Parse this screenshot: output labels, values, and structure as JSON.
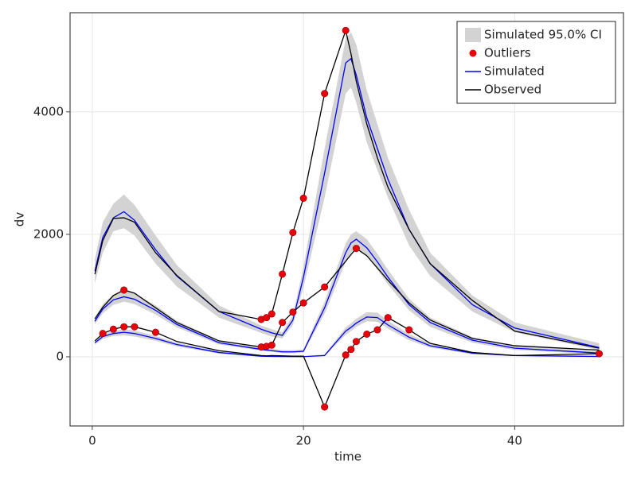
{
  "chart_data": {
    "type": "line",
    "xlabel": "time",
    "ylabel": "dv",
    "xlim": [
      -2.1,
      50.3
    ],
    "ylim": [
      -1130,
      5620
    ],
    "xticks": [
      0,
      20,
      40
    ],
    "yticks": [
      0,
      2000,
      4000
    ],
    "grid": true,
    "legend": "upper right",
    "x": [
      0.25,
      1,
      2,
      3,
      4,
      6,
      8,
      12,
      16,
      16.5,
      17,
      18,
      19,
      20,
      22,
      24,
      24.5,
      25,
      26,
      27,
      28,
      30,
      32,
      36,
      40,
      48
    ],
    "legend_entries": [
      {
        "name": "Simulated 95.0% CI",
        "color": "#d3d3d3"
      },
      {
        "name": "Outliers",
        "color": "#e8000b"
      },
      {
        "name": "Simulated",
        "color": "#0000ff"
      },
      {
        "name": "Observed",
        "color": "#000000"
      }
    ],
    "profiles": [
      {
        "observed": [
          1350,
          1900,
          2260,
          2270,
          2200,
          1700,
          1330,
          740,
          610,
          640,
          700,
          1350,
          2030,
          2590,
          4300,
          5330,
          4950,
          4500,
          3800,
          3250,
          2770,
          2080,
          1520,
          920,
          420,
          140
        ],
        "simulated": [
          1400,
          1950,
          2270,
          2370,
          2230,
          1750,
          1320,
          740,
          450,
          420,
          390,
          350,
          600,
          1300,
          3000,
          4800,
          4870,
          4600,
          3900,
          3400,
          2900,
          2080,
          1520,
          850,
          470,
          150
        ],
        "lower": [
          1200,
          1700,
          2050,
          2100,
          1980,
          1520,
          1150,
          640,
          390,
          360,
          330,
          300,
          520,
          1130,
          2600,
          4300,
          4400,
          4150,
          3500,
          3050,
          2600,
          1820,
          1320,
          740,
          400,
          110
        ],
        "upper": [
          1600,
          2200,
          2500,
          2650,
          2480,
          1980,
          1500,
          840,
          510,
          480,
          450,
          400,
          680,
          1470,
          3400,
          5200,
          5300,
          5100,
          4350,
          3800,
          3250,
          2400,
          1700,
          1000,
          560,
          220
        ]
      },
      {
        "observed": [
          620,
          810,
          1000,
          1090,
          1040,
          800,
          560,
          260,
          160,
          170,
          190,
          560,
          730,
          880,
          1140,
          1560,
          1670,
          1770,
          1650,
          1450,
          1250,
          880,
          600,
          300,
          180,
          110
        ],
        "simulated": [
          580,
          780,
          930,
          980,
          940,
          760,
          530,
          230,
          120,
          110,
          100,
          80,
          80,
          90,
          800,
          1700,
          1860,
          1920,
          1780,
          1550,
          1300,
          850,
          560,
          270,
          140,
          60
        ],
        "lower": [
          530,
          710,
          850,
          900,
          860,
          690,
          480,
          200,
          100,
          90,
          80,
          60,
          60,
          70,
          700,
          1550,
          1700,
          1780,
          1650,
          1420,
          1180,
          760,
          490,
          230,
          110,
          40
        ],
        "upper": [
          640,
          860,
          1020,
          1080,
          1030,
          840,
          590,
          270,
          150,
          140,
          130,
          110,
          110,
          120,
          900,
          1850,
          2000,
          2050,
          1920,
          1680,
          1420,
          950,
          640,
          320,
          180,
          90
        ]
      },
      {
        "observed": [
          260,
          380,
          450,
          490,
          490,
          400,
          250,
          100,
          20,
          15,
          20,
          15,
          10,
          10,
          -820,
          30,
          120,
          250,
          370,
          440,
          640,
          440,
          220,
          70,
          20,
          50
        ],
        "simulated": [
          230,
          330,
          380,
          400,
          380,
          300,
          200,
          70,
          10,
          8,
          6,
          4,
          3,
          3,
          20,
          420,
          480,
          550,
          650,
          640,
          520,
          320,
          180,
          60,
          20,
          5
        ],
        "lower": [
          200,
          290,
          340,
          350,
          330,
          260,
          170,
          50,
          0,
          0,
          0,
          0,
          0,
          0,
          10,
          360,
          420,
          490,
          580,
          570,
          460,
          270,
          150,
          40,
          10,
          0
        ],
        "upper": [
          260,
          370,
          420,
          450,
          430,
          340,
          230,
          90,
          20,
          18,
          15,
          12,
          10,
          10,
          40,
          480,
          550,
          620,
          730,
          720,
          590,
          370,
          220,
          80,
          30,
          15
        ]
      }
    ],
    "outliers": {
      "x": [
        16,
        16.5,
        17,
        18,
        19,
        20,
        22,
        24,
        3,
        16,
        16.5,
        17,
        18,
        19,
        20,
        22,
        25,
        1,
        2,
        3,
        4,
        6,
        22,
        24,
        24.5,
        25,
        26,
        27,
        28,
        30,
        48
      ],
      "y": [
        610,
        640,
        700,
        1350,
        2030,
        2590,
        4300,
        5330,
        1090,
        160,
        170,
        190,
        560,
        730,
        880,
        1140,
        1770,
        380,
        450,
        490,
        490,
        400,
        -820,
        30,
        120,
        250,
        370,
        440,
        640,
        440,
        50
      ]
    }
  }
}
